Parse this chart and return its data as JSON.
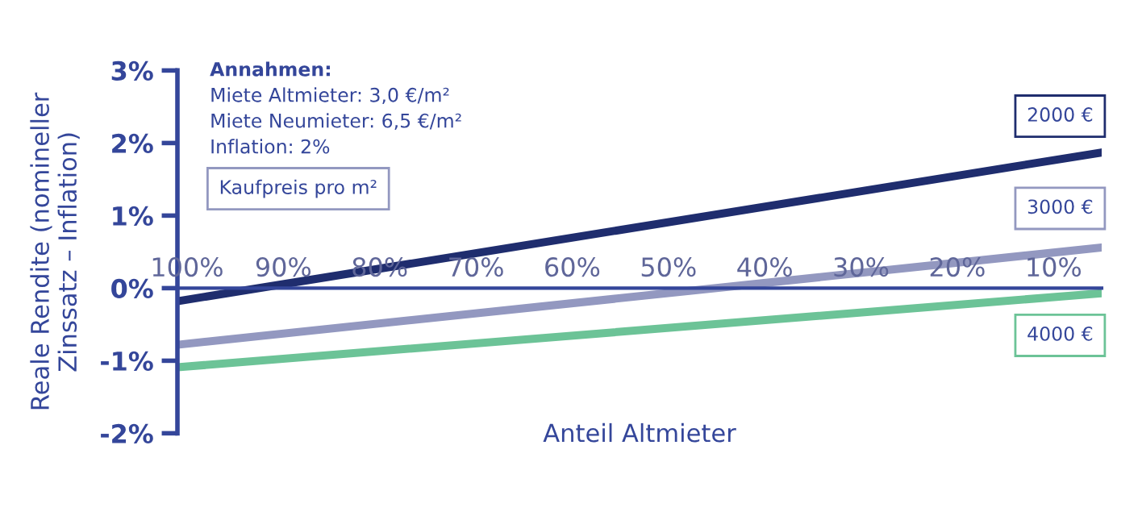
{
  "chart_data": {
    "type": "line",
    "xlabel": "Anteil Altmieter",
    "ylabel": "Reale Rendite (nomineller\nZinssatz – Inflation)",
    "legend_title": "Kaufpreis pro m²",
    "annotations": [
      "Annahmen:",
      "Miete Altmieter: 3,0 €/m²",
      "Miete Neumieter: 6,5 €/m²",
      "Inflation: 2%"
    ],
    "x": [
      101,
      5
    ],
    "series": [
      {
        "name": "2000 €",
        "color": "#1f2d6e",
        "values": [
          -0.18,
          1.87
        ]
      },
      {
        "name": "3000 €",
        "color": "#9398c0",
        "values": [
          -0.78,
          0.56
        ]
      },
      {
        "name": "4000 €",
        "color": "#6cc397",
        "values": [
          -1.09,
          -0.07
        ]
      }
    ],
    "xlim": [
      101,
      5
    ],
    "xticks": [
      {
        "value": 100,
        "label": "100%"
      },
      {
        "value": 90,
        "label": "90%"
      },
      {
        "value": 80,
        "label": "80%"
      },
      {
        "value": 70,
        "label": "70%"
      },
      {
        "value": 60,
        "label": "60%"
      },
      {
        "value": 50,
        "label": "50%"
      },
      {
        "value": 40,
        "label": "40%"
      },
      {
        "value": 30,
        "label": "30%"
      },
      {
        "value": 20,
        "label": "20%"
      },
      {
        "value": 10,
        "label": "10%"
      }
    ],
    "ylim": [
      -2,
      3
    ],
    "yticks": [
      {
        "value": -2,
        "label": "-2%"
      },
      {
        "value": -1,
        "label": "-1%"
      },
      {
        "value": 0,
        "label": "0%"
      },
      {
        "value": 1,
        "label": "1%"
      },
      {
        "value": 2,
        "label": "2%"
      },
      {
        "value": 3,
        "label": "3%"
      }
    ],
    "grid": false,
    "legend": false,
    "marker": "none",
    "line_style": "solid"
  }
}
